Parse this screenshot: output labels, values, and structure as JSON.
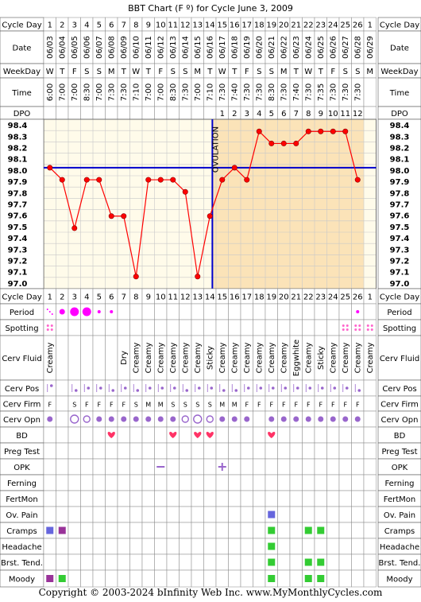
{
  "title": "BBT Chart (F º) for Cycle June 3, 2009",
  "footer": "Copyright © 2003-2024 bInfinity Web Inc.    www.MyMonthlyCycles.com",
  "labels": {
    "cycle_day": "Cycle Day",
    "date": "Date",
    "weekday": "WeekDay",
    "time": "Time",
    "dpo": "DPO",
    "ovulation": "OVULATION"
  },
  "colors": {
    "line": "#ff0000",
    "point_fill": "#ff0000",
    "grid": "#c8c8c8",
    "pre_bg": "#fffbea",
    "post_bg": "#fbe3b8",
    "coverline": "#0000cc",
    "period": "#ff00ff",
    "spotting": "#ff66cc",
    "pos": "#9966cc",
    "heart": "#ff3366",
    "green": "#33cc33",
    "purple": "#993399",
    "blue": "#6666dd",
    "header_bg": "#e8e8e8"
  },
  "columns": {
    "cycle_days": [
      "1",
      "2",
      "3",
      "4",
      "5",
      "6",
      "7",
      "8",
      "9",
      "10",
      "11",
      "12",
      "13",
      "14",
      "15",
      "16",
      "17",
      "18",
      "19",
      "20",
      "21",
      "22",
      "23",
      "24",
      "25",
      "26",
      "1"
    ],
    "dates": [
      "06/03",
      "06/04",
      "06/05",
      "06/06",
      "06/07",
      "06/08",
      "06/09",
      "06/10",
      "06/11",
      "06/12",
      "06/13",
      "06/14",
      "06/15",
      "06/16",
      "06/17",
      "06/18",
      "06/19",
      "06/20",
      "06/21",
      "06/22",
      "06/23",
      "06/24",
      "06/25",
      "06/26",
      "06/27",
      "06/28",
      "06/29"
    ],
    "weekdays": [
      "W",
      "T",
      "F",
      "S",
      "S",
      "M",
      "T",
      "W",
      "T",
      "F",
      "S",
      "S",
      "M",
      "T",
      "W",
      "T",
      "F",
      "S",
      "S",
      "M",
      "T",
      "W",
      "T",
      "F",
      "S",
      "S",
      "M"
    ],
    "times": [
      "6:00",
      "7:00",
      "7:00",
      "8:30",
      "7:00",
      "7:30",
      "7:30",
      "7:10",
      "7:00",
      "7:00",
      "8:30",
      "7:30",
      "7:00",
      "7:10",
      "7:30",
      "7:40",
      "7:30",
      "7:30",
      "8:30",
      "7:30",
      "7:40",
      "7:30",
      "7:35",
      "7:30",
      "7:30",
      "7:30",
      ""
    ],
    "dpo": [
      "",
      "",
      "",
      "",
      "",
      "",
      "",
      "",
      "",
      "",
      "",
      "",
      "",
      "",
      "1",
      "2",
      "3",
      "4",
      "5",
      "6",
      "7",
      "8",
      "9",
      "10",
      "11",
      "12",
      ""
    ]
  },
  "chart_data": {
    "type": "line",
    "title": "BBT Chart (F º) for Cycle June 3, 2009",
    "x": [
      1,
      2,
      3,
      4,
      5,
      6,
      7,
      8,
      9,
      10,
      11,
      12,
      13,
      14,
      15,
      16,
      17,
      18,
      19,
      20,
      21,
      22,
      23,
      24,
      25,
      26
    ],
    "values": [
      98.0,
      97.9,
      97.5,
      97.9,
      97.9,
      97.6,
      97.6,
      97.1,
      97.9,
      97.9,
      97.9,
      97.8,
      97.1,
      97.6,
      97.9,
      98.0,
      97.9,
      98.3,
      98.2,
      98.2,
      98.2,
      98.3,
      98.3,
      98.3,
      98.3,
      97.9
    ],
    "ylim": [
      97.0,
      98.4
    ],
    "yticks": [
      "98.4",
      "98.3",
      "98.2",
      "98.1",
      "98.0",
      "97.9",
      "97.8",
      "97.7",
      "97.6",
      "97.5",
      "97.4",
      "97.3",
      "97.2",
      "97.1",
      "97.0"
    ],
    "coverline": 98.0,
    "ovulation_day": 14,
    "grid": true
  },
  "rows": [
    {
      "label": "Cycle Day",
      "kind": "text",
      "values": [
        "1",
        "2",
        "3",
        "4",
        "5",
        "6",
        "7",
        "8",
        "9",
        "10",
        "11",
        "12",
        "13",
        "14",
        "15",
        "16",
        "17",
        "18",
        "19",
        "20",
        "21",
        "22",
        "23",
        "24",
        "25",
        "26",
        "1"
      ]
    },
    {
      "label": "Period",
      "kind": "period",
      "values": [
        "spot",
        "m",
        "l",
        "l",
        "s",
        "s",
        "",
        "",
        "",
        "",
        "",
        "",
        "",
        "",
        "",
        "",
        "",
        "",
        "",
        "",
        "",
        "",
        "",
        "",
        "",
        "s",
        ""
      ]
    },
    {
      "label": "Spotting",
      "kind": "spotting",
      "values": [
        "y",
        "",
        "",
        "",
        "",
        "",
        "",
        "",
        "",
        "",
        "",
        "",
        "",
        "",
        "",
        "",
        "",
        "",
        "",
        "",
        "",
        "",
        "",
        "",
        "y",
        "y",
        "y"
      ]
    },
    {
      "label": "Cerv Fluid",
      "kind": "vtext",
      "values": [
        "Creamy",
        "",
        "",
        "",
        "",
        "",
        "Dry",
        "Creamy",
        "Creamy",
        "Creamy",
        "Creamy",
        "Creamy",
        "Creamy",
        "Sticky",
        "Creamy",
        "Creamy",
        "Creamy",
        "Creamy",
        "Creamy",
        "Creamy",
        "Eggwhite",
        "Creamy",
        "Sticky",
        "Creamy",
        "Creamy",
        "Creamy",
        "Creamy"
      ]
    },
    {
      "label": "Cerv Pos",
      "kind": "pos",
      "values": [
        "h",
        "",
        "l",
        "m",
        "m",
        "l",
        "m",
        "l",
        "m",
        "m",
        "m",
        "l",
        "m",
        "m",
        "l",
        "l",
        "m",
        "m",
        "m",
        "m",
        "m",
        "m",
        "m",
        "m",
        "m",
        "l",
        ""
      ]
    },
    {
      "label": "Cerv Firm",
      "kind": "text",
      "values": [
        "F",
        "",
        "S",
        "F",
        "F",
        "F",
        "F",
        "S",
        "M",
        "M",
        "S",
        "S",
        "S",
        "S",
        "M",
        "M",
        "F",
        "F",
        "F",
        "F",
        "F",
        "F",
        "F",
        "F",
        "F",
        "F",
        ""
      ]
    },
    {
      "label": "Cerv Opn",
      "kind": "opn",
      "values": [
        "s",
        "",
        "l",
        "m",
        "s",
        "s",
        "s",
        "s",
        "s",
        "s",
        "s",
        "m",
        "l",
        "m",
        "s",
        "s",
        "s",
        "",
        "s",
        "s",
        "s",
        "s",
        "s",
        "s",
        "s",
        "s",
        ""
      ]
    },
    {
      "label": "BD",
      "kind": "heart",
      "values": [
        "",
        "",
        "",
        "",
        "",
        "y",
        "",
        "",
        "",
        "",
        "y",
        "",
        "y",
        "y",
        "",
        "",
        "",
        "",
        "y",
        "",
        "",
        "",
        "",
        "",
        "",
        "",
        ""
      ]
    },
    {
      "label": "Preg Test",
      "kind": "none",
      "values": []
    },
    {
      "label": "OPK",
      "kind": "opk",
      "values": [
        "",
        "",
        "",
        "",
        "",
        "",
        "",
        "",
        "",
        "neg",
        "",
        "",
        "",
        "",
        "pos",
        "",
        "",
        "",
        "",
        "",
        "",
        "",
        "",
        "",
        "",
        "",
        ""
      ]
    },
    {
      "label": "Ferning",
      "kind": "none",
      "values": []
    },
    {
      "label": "FertMon",
      "kind": "none",
      "values": []
    },
    {
      "label": "Ov. Pain",
      "kind": "square",
      "values": [
        "",
        "",
        "",
        "",
        "",
        "",
        "",
        "",
        "",
        "",
        "",
        "",
        "",
        "",
        "",
        "",
        "",
        "",
        "blue",
        "",
        "",
        "",
        "",
        "",
        "",
        "",
        ""
      ]
    },
    {
      "label": "Cramps",
      "kind": "square",
      "values": [
        "blue",
        "purple",
        "",
        "",
        "",
        "",
        "",
        "",
        "",
        "",
        "",
        "",
        "",
        "",
        "",
        "",
        "",
        "",
        "green",
        "",
        "",
        "green",
        "green",
        "",
        "",
        "",
        ""
      ]
    },
    {
      "label": "Headache",
      "kind": "square",
      "values": [
        "",
        "",
        "",
        "",
        "",
        "",
        "",
        "",
        "",
        "",
        "",
        "",
        "",
        "",
        "",
        "",
        "",
        "",
        "green",
        "",
        "",
        "",
        "",
        "",
        "",
        "",
        ""
      ]
    },
    {
      "label": "Brst. Tend.",
      "kind": "square",
      "values": [
        "",
        "",
        "",
        "",
        "",
        "",
        "",
        "",
        "",
        "",
        "",
        "",
        "",
        "",
        "",
        "",
        "",
        "",
        "green",
        "",
        "",
        "green",
        "green",
        "",
        "",
        "",
        ""
      ]
    },
    {
      "label": "Moody",
      "kind": "square",
      "values": [
        "purple",
        "green",
        "",
        "",
        "",
        "",
        "",
        "",
        "",
        "",
        "",
        "",
        "",
        "",
        "",
        "",
        "",
        "",
        "green",
        "",
        "",
        "green",
        "green",
        "",
        "",
        "",
        ""
      ]
    }
  ]
}
